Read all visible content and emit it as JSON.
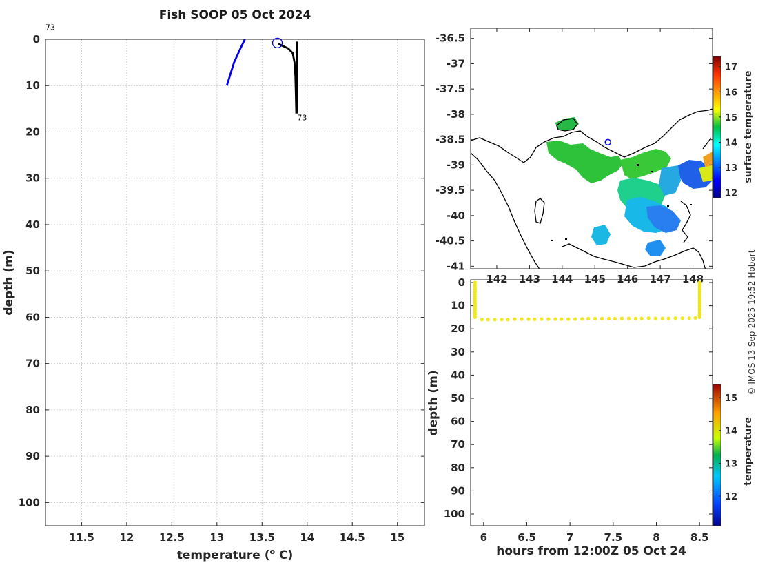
{
  "page": {
    "credit": "© IMOS 13-Sep-2025 19:52 Hobart"
  },
  "chart_data": [
    {
      "id": "profile",
      "type": "line",
      "title": "Fish SOOP 05 Oct 2024",
      "xlabel": "temperature (",
      "xlabel_sup": "o",
      "xlabel_end": " C)",
      "ylabel": "depth (m)",
      "xlim": [
        11.1,
        15.3
      ],
      "ylim": [
        105,
        0
      ],
      "xticks": [
        11.5,
        12,
        12.5,
        13,
        13.5,
        14,
        14.5,
        15
      ],
      "xtick_labels": [
        "11.5",
        "12",
        "12.5",
        "13",
        "13.5",
        "14",
        "14.5",
        "15"
      ],
      "yticks": [
        0,
        10,
        20,
        30,
        40,
        50,
        60,
        70,
        80,
        90,
        100
      ],
      "ytick_labels": [
        "0",
        "10",
        "20",
        "30",
        "40",
        "50",
        "60",
        "70",
        "80",
        "90",
        "100"
      ],
      "grid": true,
      "series": [
        {
          "color": "#0000ee",
          "x": [
            13.11,
            13.19,
            13.26,
            13.31
          ],
          "y": [
            10,
            5,
            2,
            0
          ]
        },
        {
          "color": "#000000",
          "x": [
            13.68,
            13.79,
            13.84,
            13.86,
            13.87,
            13.875,
            13.88
          ],
          "y": [
            1,
            2,
            3,
            5,
            8,
            12,
            16
          ]
        },
        {
          "color": "#000000",
          "x": [
            13.89,
            13.89
          ],
          "y": [
            0.5,
            16
          ]
        }
      ],
      "markers": [
        {
          "type": "circle",
          "color": "#0000ee",
          "x": 13.67,
          "y": 0.8
        }
      ],
      "annotations": [
        {
          "text": "73",
          "x": 11.1,
          "y": -2
        },
        {
          "text": "73",
          "x": 13.89,
          "y": 17.5
        }
      ]
    },
    {
      "id": "map",
      "type": "heatmap",
      "xlim": [
        141.2,
        148.6
      ],
      "ylim": [
        -41.05,
        -36.3
      ],
      "xticks": [
        142,
        143,
        144,
        145,
        146,
        147,
        148
      ],
      "xtick_labels": [
        "142",
        "143",
        "144",
        "145",
        "146",
        "147",
        "148"
      ],
      "yticks": [
        -36.5,
        -37,
        -37.5,
        -38,
        -38.5,
        -39,
        -39.5,
        -40,
        -40.5,
        -41
      ],
      "ytick_labels": [
        "-36.5",
        "-37",
        "-37.5",
        "-38",
        "-38.5",
        "-39",
        "-39.5",
        "-40",
        "-40.5",
        "-41"
      ],
      "colorbar": {
        "label": "surface temperature",
        "range": [
          11.8,
          17.4
        ],
        "ticks": [
          12,
          13,
          14,
          15,
          16,
          17
        ],
        "tick_labels": [
          "12",
          "13",
          "14",
          "15",
          "16",
          "17"
        ]
      },
      "marker": {
        "lon": 145.4,
        "lat": -38.55,
        "color": "#0000ee"
      }
    },
    {
      "id": "section",
      "type": "scatter",
      "xlabel": "hours from 12:00Z 05 Oct 24",
      "ylabel": "depth (m)",
      "xlim": [
        5.85,
        8.65
      ],
      "ylim": [
        105,
        0
      ],
      "xticks": [
        6,
        6.5,
        7,
        7.5,
        8,
        8.5
      ],
      "xtick_labels": [
        "6",
        "6.5",
        "7",
        "7.5",
        "8",
        "8.5"
      ],
      "yticks": [
        0,
        10,
        20,
        30,
        40,
        50,
        60,
        70,
        80,
        90,
        100
      ],
      "ytick_labels": [
        "0",
        "10",
        "20",
        "30",
        "40",
        "50",
        "60",
        "70",
        "80",
        "90",
        "100"
      ],
      "point_color": "#f0e81a",
      "series": [
        {
          "x": [
            5.9,
            5.9,
            5.9,
            5.9,
            5.9,
            5.9,
            5.9,
            5.9,
            5.9,
            5.9,
            5.9,
            5.9,
            5.9,
            5.9,
            5.9,
            5.9
          ],
          "y": [
            0,
            1,
            2,
            3,
            4,
            5,
            6,
            7,
            8,
            9,
            10,
            11,
            12,
            13,
            14,
            15
          ]
        },
        {
          "x": [
            5.98,
            6.05,
            6.13,
            6.21,
            6.28,
            6.36,
            6.44,
            6.52,
            6.59,
            6.67,
            6.75,
            6.83,
            6.9,
            6.98,
            7.06,
            7.14,
            7.21,
            7.29,
            7.37,
            7.45,
            7.52,
            7.6,
            7.68,
            7.76,
            7.83,
            7.91,
            7.99,
            8.07,
            8.14,
            8.22,
            8.3,
            8.38,
            8.45
          ],
          "y": [
            16,
            16,
            16,
            16,
            16,
            15.8,
            15.8,
            15.8,
            15.9,
            15.8,
            15.8,
            15.8,
            15.8,
            15.8,
            15.8,
            15.7,
            15.6,
            15.6,
            15.6,
            15.6,
            15.6,
            15.5,
            15.5,
            15.6,
            15.5,
            15.4,
            15.5,
            15.5,
            15.5,
            15.4,
            15.4,
            15.4,
            15.3
          ]
        },
        {
          "x": [
            8.5,
            8.5,
            8.5,
            8.5,
            8.5,
            8.5,
            8.5,
            8.5,
            8.5,
            8.5,
            8.5,
            8.5,
            8.5,
            8.5,
            8.5,
            8.5
          ],
          "y": [
            15,
            14,
            13,
            12,
            11,
            10,
            9,
            8,
            7,
            6,
            5,
            4,
            3,
            2,
            1,
            0
          ]
        }
      ],
      "colorbar": {
        "label": "temperature",
        "range": [
          11.1,
          15.4
        ],
        "ticks": [
          12,
          13,
          14,
          15
        ],
        "tick_labels": [
          "12",
          "13",
          "14",
          "15"
        ]
      }
    }
  ]
}
